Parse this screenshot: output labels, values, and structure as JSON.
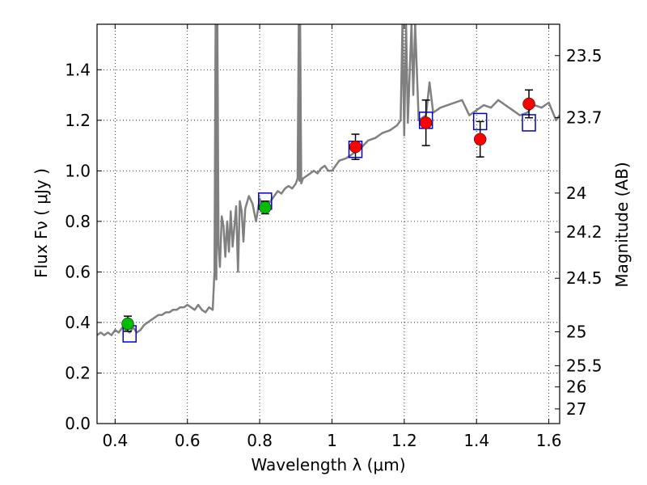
{
  "chart_data": {
    "type": "line",
    "xlabel": "Wavelength  λ (μm)",
    "ylabel": "Flux  Fν  ( μJy )",
    "y2label": "Magnitude (AB)",
    "xlim": [
      0.35,
      1.63
    ],
    "ylim": [
      0.0,
      1.58
    ],
    "grid": true,
    "x_ticks": [
      {
        "value": 0.4,
        "label": "0.4"
      },
      {
        "value": 0.6,
        "label": "0.6"
      },
      {
        "value": 0.8,
        "label": "0.8"
      },
      {
        "value": 1.0,
        "label": "1"
      },
      {
        "value": 1.2,
        "label": "1.2"
      },
      {
        "value": 1.4,
        "label": "1.4"
      },
      {
        "value": 1.6,
        "label": "1.6"
      }
    ],
    "y_ticks": [
      {
        "value": 0.0,
        "label": "0.0"
      },
      {
        "value": 0.2,
        "label": "0.2"
      },
      {
        "value": 0.4,
        "label": "0.4"
      },
      {
        "value": 0.6,
        "label": "0.6"
      },
      {
        "value": 0.8,
        "label": "0.8"
      },
      {
        "value": 1.0,
        "label": "1.0"
      },
      {
        "value": 1.2,
        "label": "1.2"
      },
      {
        "value": 1.4,
        "label": "1.4"
      }
    ],
    "y2_ticks": [
      {
        "flux": 1.456,
        "label": "23.5"
      },
      {
        "flux": 1.211,
        "label": "23.7"
      },
      {
        "flux": 0.912,
        "label": "24"
      },
      {
        "flux": 0.758,
        "label": "24.2"
      },
      {
        "flux": 0.575,
        "label": "24.5"
      },
      {
        "flux": 0.363,
        "label": "25"
      },
      {
        "flux": 0.229,
        "label": "25.5"
      },
      {
        "flux": 0.145,
        "label": "26"
      },
      {
        "flux": 0.058,
        "label": "27"
      }
    ],
    "colors": {
      "spectrum": "#808080",
      "green_points": "#00bb00",
      "red_points": "#ff0000",
      "model_boxes": "#0000cc",
      "errorbars": "#000000"
    },
    "series": [
      {
        "name": "model spectrum",
        "type": "line",
        "x": [
          0.35,
          0.36,
          0.37,
          0.38,
          0.39,
          0.4,
          0.41,
          0.42,
          0.43,
          0.44,
          0.45,
          0.46,
          0.47,
          0.48,
          0.49,
          0.5,
          0.51,
          0.52,
          0.53,
          0.54,
          0.55,
          0.56,
          0.57,
          0.58,
          0.59,
          0.6,
          0.61,
          0.62,
          0.63,
          0.64,
          0.65,
          0.66,
          0.67,
          0.675,
          0.678,
          0.68,
          0.683,
          0.686,
          0.69,
          0.695,
          0.7,
          0.705,
          0.71,
          0.715,
          0.72,
          0.725,
          0.73,
          0.735,
          0.74,
          0.745,
          0.75,
          0.755,
          0.76,
          0.77,
          0.78,
          0.79,
          0.8,
          0.81,
          0.82,
          0.83,
          0.84,
          0.85,
          0.86,
          0.87,
          0.88,
          0.89,
          0.9,
          0.905,
          0.908,
          0.91,
          0.912,
          0.915,
          0.92,
          0.93,
          0.94,
          0.95,
          0.96,
          0.97,
          0.98,
          0.99,
          1.0,
          1.02,
          1.04,
          1.06,
          1.08,
          1.1,
          1.12,
          1.14,
          1.16,
          1.18,
          1.19,
          1.195,
          1.2,
          1.205,
          1.21,
          1.22,
          1.225,
          1.23,
          1.24,
          1.25,
          1.26,
          1.27,
          1.28,
          1.29,
          1.3,
          1.32,
          1.34,
          1.36,
          1.38,
          1.4,
          1.42,
          1.44,
          1.46,
          1.48,
          1.5,
          1.52,
          1.54,
          1.56,
          1.58,
          1.6,
          1.62,
          1.63
        ],
        "y": [
          0.35,
          0.36,
          0.35,
          0.36,
          0.35,
          0.37,
          0.36,
          0.38,
          0.37,
          0.36,
          0.38,
          0.36,
          0.37,
          0.39,
          0.4,
          0.41,
          0.42,
          0.43,
          0.43,
          0.44,
          0.44,
          0.45,
          0.45,
          0.46,
          0.46,
          0.47,
          0.46,
          0.45,
          0.47,
          0.45,
          0.44,
          0.46,
          0.45,
          0.6,
          1.58,
          0.57,
          1.58,
          0.7,
          0.62,
          0.82,
          0.78,
          0.66,
          0.8,
          0.68,
          0.84,
          0.7,
          0.78,
          0.86,
          0.6,
          0.88,
          0.84,
          0.72,
          0.85,
          0.9,
          0.87,
          0.8,
          0.89,
          0.85,
          0.86,
          0.88,
          0.9,
          0.92,
          0.91,
          0.93,
          0.94,
          0.93,
          0.95,
          0.97,
          1.58,
          0.96,
          1.58,
          0.95,
          0.97,
          0.98,
          0.99,
          1.0,
          0.99,
          1.01,
          1.02,
          1.0,
          1.0,
          1.04,
          1.05,
          1.07,
          1.09,
          1.12,
          1.13,
          1.15,
          1.16,
          1.18,
          1.2,
          1.58,
          1.14,
          1.58,
          1.19,
          1.58,
          1.3,
          1.58,
          1.2,
          1.21,
          1.22,
          1.35,
          1.23,
          1.24,
          1.25,
          1.26,
          1.27,
          1.28,
          1.22,
          1.24,
          1.26,
          1.25,
          1.28,
          1.26,
          1.24,
          1.22,
          1.23,
          1.26,
          1.25,
          1.27,
          1.2,
          1.22
        ]
      },
      {
        "name": "photometry (green)",
        "type": "scatter",
        "points": [
          {
            "x": 0.435,
            "y": 0.395,
            "err": 0.03
          },
          {
            "x": 0.815,
            "y": 0.855,
            "err": 0.025
          }
        ]
      },
      {
        "name": "photometry (red)",
        "type": "scatter",
        "points": [
          {
            "x": 1.065,
            "y": 1.095,
            "err": 0.05
          },
          {
            "x": 1.26,
            "y": 1.19,
            "err": 0.09
          },
          {
            "x": 1.41,
            "y": 1.125,
            "err": 0.07
          },
          {
            "x": 1.545,
            "y": 1.265,
            "err": 0.055
          }
        ]
      },
      {
        "name": "model synthetic photometry",
        "type": "scatter",
        "marker": "square",
        "points": [
          {
            "x": 0.44,
            "y": 0.355
          },
          {
            "x": 0.815,
            "y": 0.88
          },
          {
            "x": 1.065,
            "y": 1.085
          },
          {
            "x": 1.26,
            "y": 1.2
          },
          {
            "x": 1.41,
            "y": 1.195
          },
          {
            "x": 1.545,
            "y": 1.19
          }
        ]
      }
    ]
  }
}
